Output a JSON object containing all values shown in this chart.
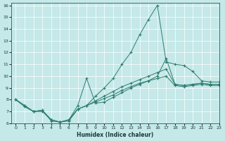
{
  "xlabel": "Humidex (Indice chaleur)",
  "xlim": [
    -0.5,
    23
  ],
  "ylim": [
    6,
    16.2
  ],
  "xticks": [
    0,
    1,
    2,
    3,
    4,
    5,
    6,
    7,
    8,
    9,
    10,
    11,
    12,
    13,
    14,
    15,
    16,
    17,
    18,
    19,
    20,
    21,
    22,
    23
  ],
  "yticks": [
    6,
    7,
    8,
    9,
    10,
    11,
    12,
    13,
    14,
    15,
    16
  ],
  "bg_color": "#c5e8e8",
  "line_color": "#2e7d6e",
  "lines": [
    [
      8.0,
      7.5,
      7.0,
      7.1,
      6.2,
      6.1,
      6.3,
      7.5,
      9.8,
      7.7,
      7.8,
      8.2,
      8.6,
      9.0,
      9.3,
      9.6,
      10.0,
      11.5,
      9.3,
      9.2,
      9.3,
      9.4,
      9.3,
      9.3
    ],
    [
      8.0,
      7.5,
      7.0,
      7.1,
      6.3,
      6.1,
      6.3,
      7.2,
      7.5,
      8.3,
      9.0,
      9.8,
      11.0,
      12.0,
      13.5,
      14.8,
      16.0,
      11.2,
      11.0,
      10.9,
      10.4,
      9.6,
      9.5,
      9.5
    ],
    [
      8.0,
      7.5,
      7.0,
      7.1,
      6.3,
      6.1,
      6.3,
      7.2,
      7.5,
      7.9,
      8.3,
      8.7,
      9.1,
      9.4,
      9.7,
      10.0,
      10.3,
      10.6,
      9.3,
      9.2,
      9.3,
      9.4,
      9.3,
      9.3
    ],
    [
      8.0,
      7.4,
      7.0,
      7.0,
      6.3,
      6.1,
      6.2,
      7.2,
      7.5,
      7.8,
      8.1,
      8.4,
      8.8,
      9.1,
      9.4,
      9.6,
      9.8,
      10.0,
      9.2,
      9.1,
      9.2,
      9.3,
      9.2,
      9.2
    ]
  ]
}
